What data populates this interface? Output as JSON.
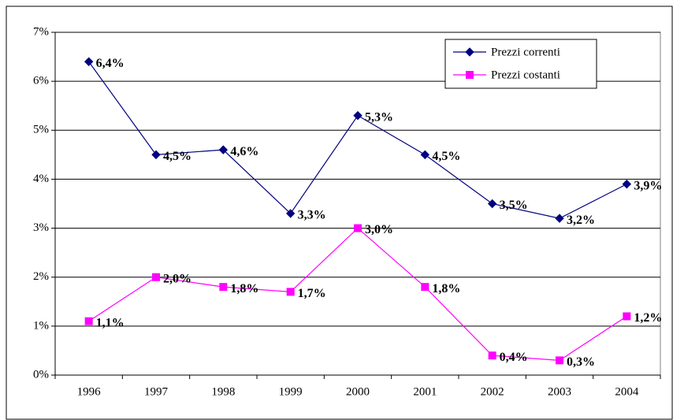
{
  "chart_data": {
    "type": "line",
    "categories": [
      "1996",
      "1997",
      "1998",
      "1999",
      "2000",
      "2001",
      "2002",
      "2003",
      "2004"
    ],
    "series": [
      {
        "name": "Prezzi correnti",
        "color": "#000080",
        "marker": "diamond",
        "values": [
          6.4,
          4.5,
          4.6,
          3.3,
          5.3,
          4.5,
          3.5,
          3.2,
          3.9
        ],
        "value_labels": [
          "6,4%",
          "4,5%",
          "4,6%",
          "3,3%",
          "5,3%",
          "4,5%",
          "3,5%",
          "3,2%",
          "3,9%"
        ]
      },
      {
        "name": "Prezzi costanti",
        "color": "#ff00ff",
        "marker": "square",
        "values": [
          1.1,
          2.0,
          1.8,
          1.7,
          3.0,
          1.8,
          0.4,
          0.3,
          1.2
        ],
        "value_labels": [
          "1,1%",
          "2,0%",
          "1,8%",
          "1,7%",
          "3,0%",
          "1,8%",
          "0,4%",
          "0,3%",
          "1,2%"
        ]
      }
    ],
    "ylim": [
      0,
      7
    ],
    "yticks": [
      {
        "value": 0,
        "label": "0%"
      },
      {
        "value": 1,
        "label": "1%"
      },
      {
        "value": 2,
        "label": "2%"
      },
      {
        "value": 3,
        "label": "3%"
      },
      {
        "value": 4,
        "label": "4%"
      },
      {
        "value": 5,
        "label": "5%"
      },
      {
        "value": 6,
        "label": "6%"
      },
      {
        "value": 7,
        "label": "7%"
      }
    ],
    "grid": true,
    "legend": "top-right"
  }
}
